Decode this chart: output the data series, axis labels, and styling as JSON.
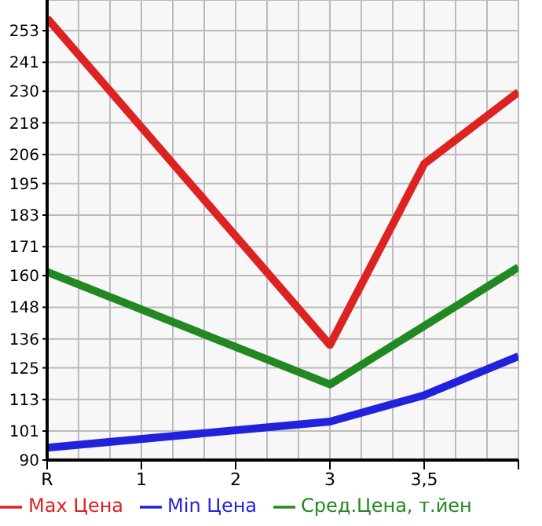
{
  "chart_data": {
    "type": "line",
    "categories": [
      "R",
      "1",
      "2",
      "3",
      "3,5",
      null
    ],
    "series": [
      {
        "name": "Max Цена",
        "color": "#dd2222",
        "values": [
          257.7,
          null,
          null,
          133.7,
          202.4,
          229.7
        ]
      },
      {
        "name": "Min Цена",
        "color": "#2222dd",
        "values": [
          94.7,
          null,
          null,
          104.6,
          114.6,
          129.4
        ]
      },
      {
        "name": "Сред.Цена, т.йен",
        "color": "#228822",
        "values": [
          161.4,
          null,
          null,
          118.7,
          140.9,
          163.2
        ]
      }
    ],
    "ylim": [
      90,
      264.64
    ],
    "yticks": [
      90,
      101,
      113,
      125,
      136,
      148,
      160,
      171,
      183,
      195,
      206,
      218,
      230,
      241,
      253
    ],
    "grid": true,
    "legend": "bottom",
    "marker": "none",
    "line_style": "solid"
  }
}
